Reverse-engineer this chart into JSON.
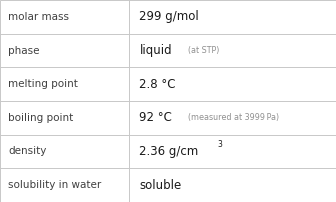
{
  "rows": [
    {
      "label": "molar mass",
      "value": "299 g/mol",
      "extra": null,
      "extra2": null
    },
    {
      "label": "phase",
      "value": "liquid",
      "extra": "(at STP)",
      "extra2": null
    },
    {
      "label": "melting point",
      "value": "2.8 °C",
      "extra": null,
      "extra2": null
    },
    {
      "label": "boiling point",
      "value": "92 °C",
      "extra": "(measured at 3999 Pa)",
      "extra2": null
    },
    {
      "label": "density",
      "value": "2.36 g/cm",
      "extra": null,
      "extra2": "3"
    },
    {
      "label": "solubility in water",
      "value": "soluble",
      "extra": null,
      "extra2": null
    }
  ],
  "bg_color": "#ffffff",
  "line_color": "#c8c8c8",
  "label_color": "#404040",
  "value_color": "#1a1a1a",
  "extra_color": "#909090",
  "col_split": 0.385,
  "label_fontsize": 7.5,
  "value_fontsize": 8.5,
  "extra_fontsize": 5.8,
  "superscript_fontsize": 5.5
}
